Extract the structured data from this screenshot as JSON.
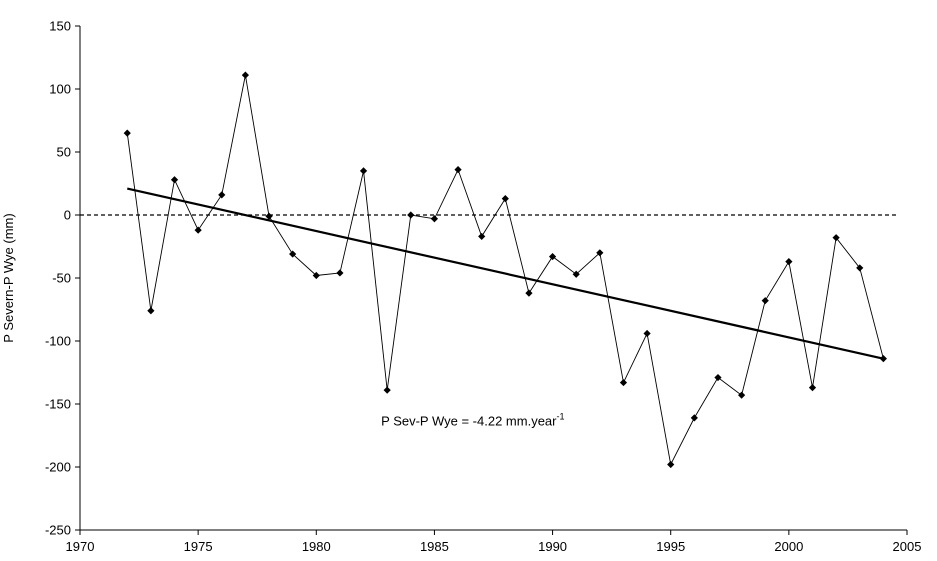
{
  "chart_data": {
    "type": "line",
    "title": "",
    "xlabel": "",
    "ylabel": "P Severn-P Wye (mm)",
    "xlim": [
      1970,
      2005
    ],
    "ylim": [
      -250,
      150
    ],
    "xticks": [
      1970,
      1975,
      1980,
      1985,
      1990,
      1995,
      2000,
      2005
    ],
    "yticks": [
      150,
      100,
      50,
      0,
      -50,
      -100,
      -150,
      -200,
      -250
    ],
    "grid": false,
    "legend": "none",
    "series": [
      {
        "x": [
          1972,
          1973,
          1974,
          1975,
          1976,
          1977,
          1978,
          1979,
          1980,
          1981,
          1982,
          1983,
          1984,
          1985,
          1986,
          1987,
          1988,
          1989,
          1990,
          1991,
          1992,
          1993,
          1994,
          1995,
          1996,
          1997,
          1998,
          1999,
          2000,
          2001,
          2002,
          2003,
          2004
        ],
        "values": [
          65,
          -76,
          28,
          -12,
          16,
          111,
          -1,
          -31,
          -48,
          -46,
          35,
          -139,
          0,
          -3,
          36,
          -17,
          13,
          -62,
          -33,
          -47,
          -30,
          -133,
          -94,
          -198,
          -161,
          -129,
          -143,
          -68,
          -37,
          -137,
          -18,
          -42,
          -114
        ],
        "color": "#000000",
        "marker": "diamond"
      }
    ],
    "trendline": {
      "x": [
        1972,
        2004
      ],
      "y": [
        21,
        -114
      ],
      "color": "#000000"
    },
    "reference_line": {
      "y": 0,
      "style": "dashed",
      "color": "#000000"
    },
    "annotation": {
      "text": "P Sev-P Wye = -4.22 mm.year",
      "superscript": "-1",
      "x": 1983,
      "y": -167
    }
  }
}
